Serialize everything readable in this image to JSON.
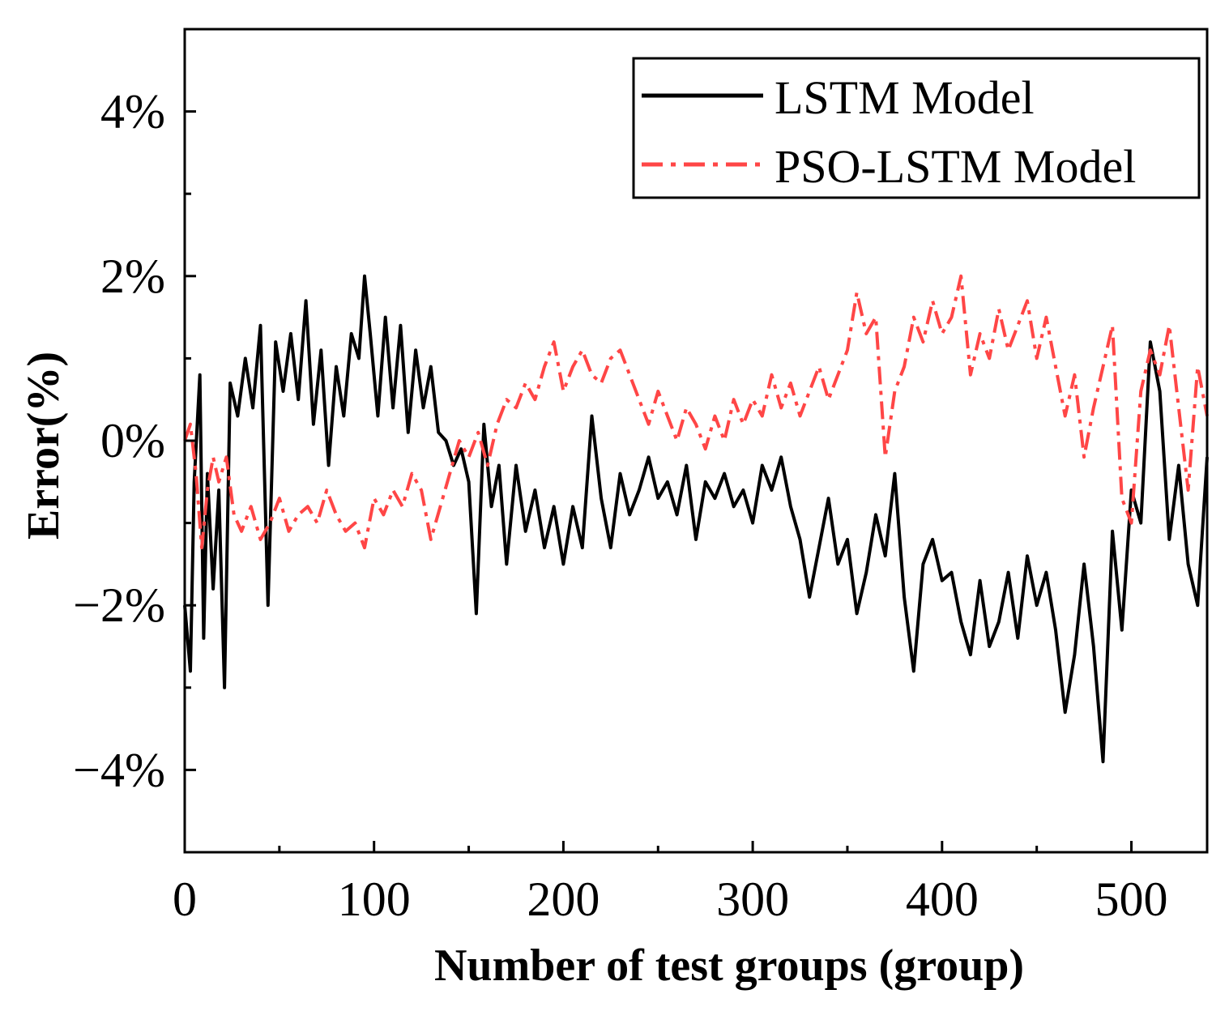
{
  "chart_data": {
    "type": "line",
    "title": "",
    "xlabel": "Number of test groups (group)",
    "ylabel": "Error(%)",
    "xlim": [
      0,
      540
    ],
    "ylim": [
      -5,
      5
    ],
    "x_ticks": [
      0,
      100,
      200,
      300,
      400,
      500
    ],
    "x_tick_labels": [
      "0",
      "100",
      "200",
      "300",
      "400",
      "500"
    ],
    "y_ticks": [
      -4,
      -2,
      0,
      2,
      4
    ],
    "y_tick_labels": [
      "−4%",
      "−2%",
      "0%",
      "2%",
      "4%"
    ],
    "legend_position": "top-right",
    "series": [
      {
        "name": "LSTM Model",
        "color": "#000000",
        "style": "solid",
        "x": [
          0,
          3,
          5,
          8,
          10,
          12,
          15,
          18,
          21,
          24,
          28,
          32,
          36,
          40,
          44,
          48,
          52,
          56,
          60,
          64,
          68,
          72,
          76,
          80,
          84,
          88,
          92,
          95,
          98,
          102,
          106,
          110,
          114,
          118,
          122,
          126,
          130,
          134,
          138,
          142,
          146,
          150,
          154,
          158,
          162,
          166,
          170,
          175,
          180,
          185,
          190,
          195,
          200,
          205,
          210,
          215,
          220,
          225,
          230,
          235,
          240,
          245,
          250,
          255,
          260,
          265,
          270,
          275,
          280,
          285,
          290,
          295,
          300,
          305,
          310,
          315,
          320,
          325,
          330,
          335,
          340,
          345,
          350,
          355,
          360,
          365,
          370,
          375,
          380,
          385,
          390,
          395,
          400,
          405,
          410,
          415,
          420,
          425,
          430,
          435,
          440,
          445,
          450,
          455,
          460,
          465,
          470,
          475,
          480,
          485,
          490,
          495,
          500,
          505,
          510,
          515,
          520,
          525,
          530,
          535,
          540
        ],
        "values": [
          -2.0,
          -2.8,
          -0.5,
          0.8,
          -2.4,
          -0.4,
          -1.8,
          -0.6,
          -3.0,
          0.7,
          0.3,
          1.0,
          0.4,
          1.4,
          -2.0,
          1.2,
          0.6,
          1.3,
          0.5,
          1.7,
          0.2,
          1.1,
          -0.3,
          0.9,
          0.3,
          1.3,
          1.0,
          2.0,
          1.3,
          0.3,
          1.5,
          0.4,
          1.4,
          0.1,
          1.1,
          0.4,
          0.9,
          0.1,
          0.0,
          -0.3,
          -0.1,
          -0.5,
          -2.1,
          0.2,
          -0.8,
          -0.3,
          -1.5,
          -0.3,
          -1.1,
          -0.6,
          -1.3,
          -0.8,
          -1.5,
          -0.8,
          -1.3,
          0.3,
          -0.7,
          -1.3,
          -0.4,
          -0.9,
          -0.6,
          -0.2,
          -0.7,
          -0.5,
          -0.9,
          -0.3,
          -1.2,
          -0.5,
          -0.7,
          -0.4,
          -0.8,
          -0.6,
          -1.0,
          -0.3,
          -0.6,
          -0.2,
          -0.8,
          -1.2,
          -1.9,
          -1.3,
          -0.7,
          -1.5,
          -1.2,
          -2.1,
          -1.6,
          -0.9,
          -1.4,
          -0.4,
          -1.9,
          -2.8,
          -1.5,
          -1.2,
          -1.7,
          -1.6,
          -2.2,
          -2.6,
          -1.7,
          -2.5,
          -2.2,
          -1.6,
          -2.4,
          -1.4,
          -2.0,
          -1.6,
          -2.3,
          -3.3,
          -2.6,
          -1.5,
          -2.5,
          -3.9,
          -1.1,
          -2.3,
          -0.6,
          -1.0,
          1.2,
          0.6,
          -1.2,
          -0.3,
          -1.5,
          -2.0,
          -0.2
        ]
      },
      {
        "name": "PSO-LSTM Model",
        "color": "#ff4646",
        "style": "dashdot",
        "x": [
          0,
          3,
          6,
          9,
          12,
          15,
          18,
          22,
          26,
          30,
          35,
          40,
          45,
          50,
          55,
          60,
          65,
          70,
          75,
          80,
          85,
          90,
          95,
          100,
          105,
          110,
          115,
          120,
          125,
          130,
          135,
          140,
          145,
          150,
          155,
          160,
          165,
          170,
          175,
          180,
          185,
          190,
          195,
          200,
          205,
          210,
          215,
          220,
          225,
          230,
          235,
          240,
          245,
          250,
          255,
          260,
          265,
          270,
          275,
          280,
          285,
          290,
          295,
          300,
          305,
          310,
          315,
          320,
          325,
          330,
          335,
          340,
          345,
          350,
          355,
          360,
          365,
          370,
          375,
          380,
          385,
          390,
          395,
          400,
          405,
          410,
          415,
          420,
          425,
          430,
          435,
          440,
          445,
          450,
          455,
          460,
          465,
          470,
          475,
          480,
          485,
          490,
          495,
          500,
          505,
          510,
          515,
          520,
          525,
          530,
          535,
          540
        ],
        "values": [
          0.0,
          0.2,
          -0.4,
          -1.3,
          -0.6,
          -0.2,
          -0.5,
          -0.2,
          -0.9,
          -1.1,
          -0.8,
          -1.2,
          -1.0,
          -0.7,
          -1.1,
          -0.9,
          -0.8,
          -1.0,
          -0.6,
          -0.9,
          -1.1,
          -1.0,
          -1.3,
          -0.7,
          -0.9,
          -0.6,
          -0.8,
          -0.4,
          -0.6,
          -1.2,
          -0.8,
          -0.4,
          0.0,
          -0.2,
          0.1,
          -0.3,
          0.2,
          0.5,
          0.4,
          0.7,
          0.5,
          0.9,
          1.2,
          0.6,
          0.9,
          1.1,
          0.8,
          0.7,
          1.0,
          1.1,
          0.8,
          0.5,
          0.2,
          0.6,
          0.3,
          0.0,
          0.4,
          0.2,
          -0.1,
          0.3,
          0.0,
          0.5,
          0.2,
          0.5,
          0.3,
          0.8,
          0.4,
          0.7,
          0.3,
          0.6,
          0.9,
          0.5,
          0.8,
          1.1,
          1.8,
          1.3,
          1.5,
          -0.2,
          0.6,
          0.9,
          1.5,
          1.2,
          1.7,
          1.3,
          1.5,
          2.0,
          0.8,
          1.3,
          1.0,
          1.6,
          1.1,
          1.4,
          1.7,
          1.0,
          1.5,
          0.9,
          0.3,
          0.8,
          -0.2,
          0.4,
          0.9,
          1.4,
          -0.7,
          -1.0,
          0.6,
          1.1,
          0.8,
          1.4,
          0.4,
          -0.6,
          0.9,
          0.3
        ]
      }
    ]
  }
}
